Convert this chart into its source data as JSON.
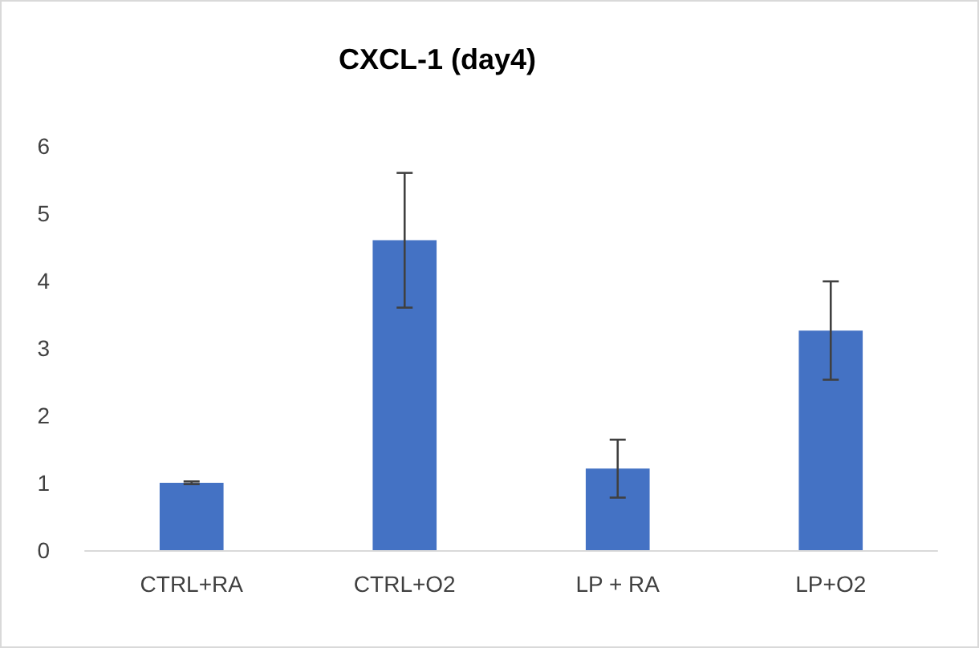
{
  "chart_data": {
    "type": "bar",
    "title": "CXCL-1 (day4)",
    "categories": [
      "CTRL+RA",
      "CTRL+O2",
      "LP + RA",
      "LP+O2"
    ],
    "values": [
      1.0,
      4.6,
      1.21,
      3.26
    ],
    "errors": [
      0.02,
      1.0,
      0.43,
      0.73
    ],
    "color": "#4472c4",
    "ylim": [
      0,
      6
    ],
    "yticks": [
      0,
      1,
      2,
      3,
      4,
      5,
      6
    ]
  }
}
